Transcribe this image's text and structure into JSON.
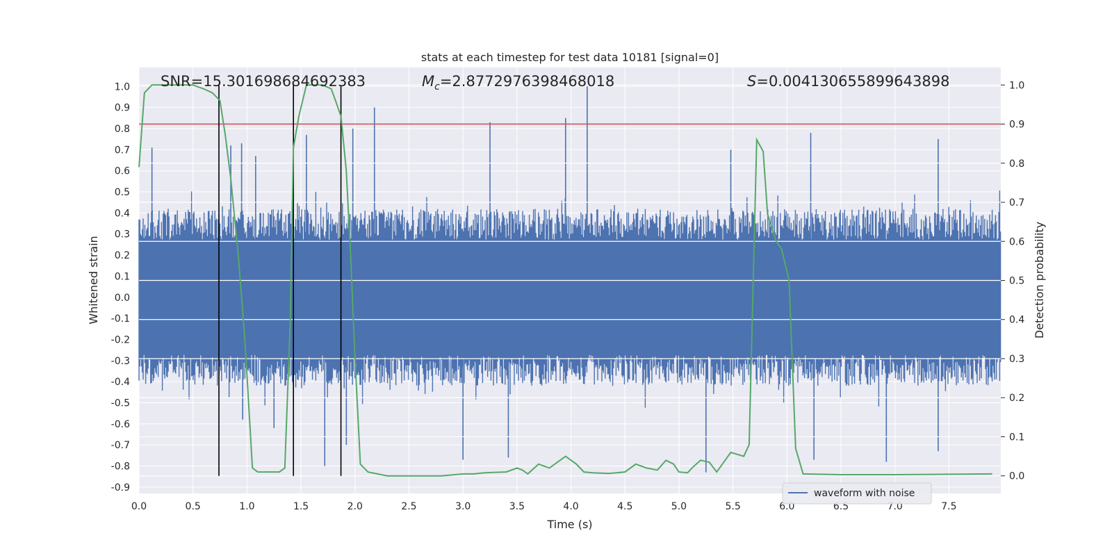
{
  "chart_data": {
    "type": "line",
    "title": "stats at each timestep for test data 10181 [signal=0]",
    "xlabel": "Time (s)",
    "ylabel": "Whitened strain",
    "ylabel_right": "Detection probability",
    "xlim": [
      0.0,
      7.98
    ],
    "ylim": [
      -0.93,
      1.09
    ],
    "ylim_right": [
      -0.045,
      1.045
    ],
    "x_ticks": [
      "0.0",
      "0.5",
      "1.0",
      "1.5",
      "2.0",
      "2.5",
      "3.0",
      "3.5",
      "4.0",
      "4.5",
      "5.0",
      "5.5",
      "6.0",
      "6.5",
      "7.0",
      "7.5"
    ],
    "y_ticks": [
      "-0.9",
      "-0.8",
      "-0.7",
      "-0.6",
      "-0.5",
      "-0.4",
      "-0.3",
      "-0.2",
      "-0.1",
      "0.0",
      "0.1",
      "0.2",
      "0.3",
      "0.4",
      "0.5",
      "0.6",
      "0.7",
      "0.8",
      "0.9",
      "1.0"
    ],
    "y_ticks_right": [
      "0.0",
      "0.1",
      "0.2",
      "0.3",
      "0.4",
      "0.5",
      "0.6",
      "0.7",
      "0.8",
      "0.9",
      "1.0"
    ],
    "grid": true,
    "annotations": {
      "snr": "SNR=15.301698684692383",
      "mc_symbol": "M",
      "mc_sub": "c",
      "mc_value": "=2.8772976398468018",
      "s_symbol": "S",
      "s_value": "=0.004130655899643898"
    },
    "legend": {
      "position": "lower-right",
      "entries": [
        "waveform with noise"
      ]
    },
    "threshold_right": 0.9,
    "vertical_lines_x": [
      0.74,
      1.43,
      1.87
    ],
    "noise_envelope_amplitude": 0.42,
    "spikes": [
      {
        "x": 0.12,
        "y": 0.71
      },
      {
        "x": 0.85,
        "y": 0.72
      },
      {
        "x": 0.95,
        "y": 0.73
      },
      {
        "x": 1.08,
        "y": 0.67
      },
      {
        "x": 1.55,
        "y": 0.77
      },
      {
        "x": 1.98,
        "y": 0.8
      },
      {
        "x": 2.18,
        "y": 0.9
      },
      {
        "x": 3.25,
        "y": 0.83
      },
      {
        "x": 3.95,
        "y": 0.85
      },
      {
        "x": 4.15,
        "y": 1.0
      },
      {
        "x": 5.48,
        "y": 0.7
      },
      {
        "x": 6.22,
        "y": 0.78
      },
      {
        "x": 7.4,
        "y": 0.75
      },
      {
        "x": 0.96,
        "y": -0.58
      },
      {
        "x": 1.25,
        "y": -0.62
      },
      {
        "x": 1.72,
        "y": -0.8
      },
      {
        "x": 1.92,
        "y": -0.7
      },
      {
        "x": 3.0,
        "y": -0.77
      },
      {
        "x": 3.42,
        "y": -0.76
      },
      {
        "x": 5.25,
        "y": -0.83
      },
      {
        "x": 6.25,
        "y": -0.77
      },
      {
        "x": 6.92,
        "y": -0.78
      },
      {
        "x": 7.4,
        "y": -0.73
      }
    ],
    "series": [
      {
        "name": "Detection probability",
        "axis": "right",
        "color": "#55a868",
        "x": [
          0.0,
          0.05,
          0.12,
          0.2,
          0.35,
          0.5,
          0.6,
          0.68,
          0.75,
          0.8,
          0.85,
          0.92,
          0.98,
          1.05,
          1.1,
          1.18,
          1.25,
          1.3,
          1.35,
          1.4,
          1.43,
          1.48,
          1.55,
          1.6,
          1.7,
          1.78,
          1.82,
          1.87,
          1.92,
          1.96,
          2.0,
          2.05,
          2.12,
          2.3,
          2.5,
          2.8,
          3.0,
          3.1,
          3.2,
          3.3,
          3.4,
          3.5,
          3.55,
          3.6,
          3.7,
          3.8,
          3.9,
          3.95,
          4.05,
          4.12,
          4.2,
          4.35,
          4.5,
          4.6,
          4.7,
          4.8,
          4.88,
          4.95,
          5.0,
          5.08,
          5.12,
          5.2,
          5.28,
          5.35,
          5.48,
          5.6,
          5.65,
          5.72,
          5.78,
          5.82,
          5.9,
          5.95,
          6.02,
          6.08,
          6.15,
          6.5,
          7.0,
          7.5,
          7.9
        ],
        "values": [
          0.79,
          0.98,
          1.0,
          1.0,
          1.0,
          1.0,
          0.99,
          0.98,
          0.96,
          0.87,
          0.76,
          0.56,
          0.35,
          0.02,
          0.01,
          0.01,
          0.01,
          0.01,
          0.02,
          0.39,
          0.84,
          0.92,
          1.0,
          1.0,
          1.0,
          0.99,
          0.96,
          0.92,
          0.78,
          0.56,
          0.3,
          0.03,
          0.01,
          0.0,
          0.0,
          0.0,
          0.005,
          0.005,
          0.008,
          0.009,
          0.01,
          0.02,
          0.015,
          0.005,
          0.03,
          0.02,
          0.04,
          0.05,
          0.03,
          0.01,
          0.008,
          0.006,
          0.01,
          0.03,
          0.02,
          0.015,
          0.04,
          0.03,
          0.01,
          0.008,
          0.02,
          0.04,
          0.035,
          0.01,
          0.06,
          0.05,
          0.08,
          0.86,
          0.83,
          0.67,
          0.6,
          0.58,
          0.5,
          0.07,
          0.005,
          0.003,
          0.003,
          0.004,
          0.005
        ]
      }
    ]
  }
}
